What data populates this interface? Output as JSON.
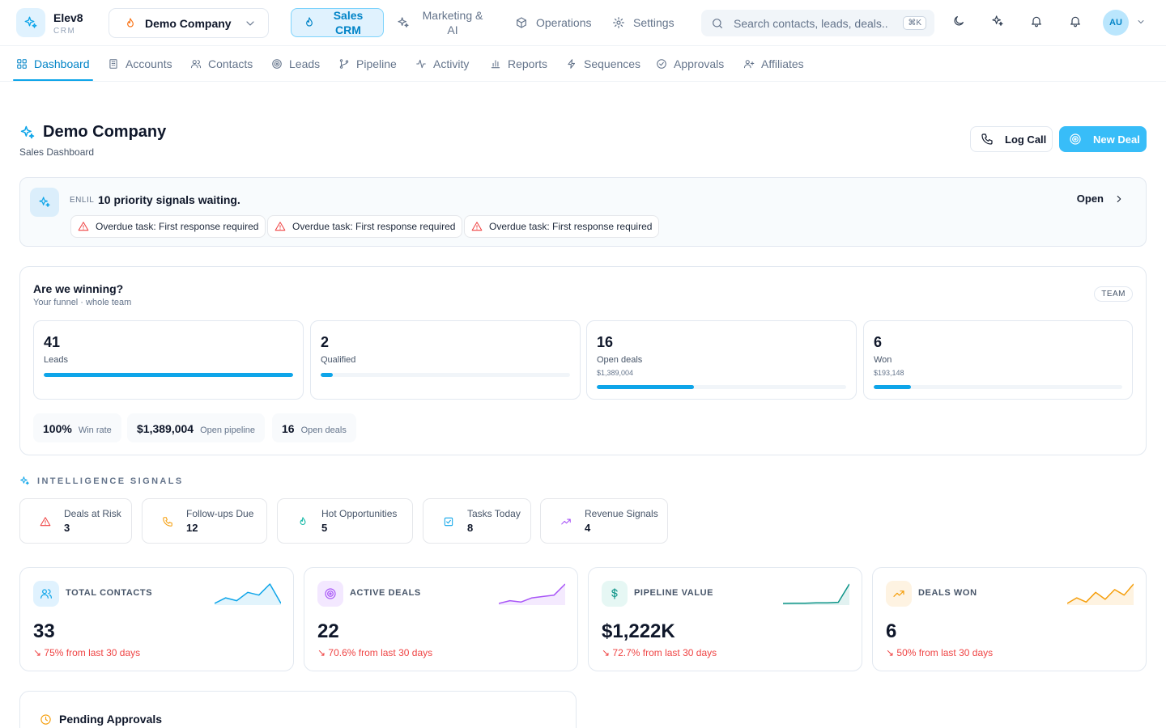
{
  "brand": {
    "name": "Elev8",
    "sub": "CRM"
  },
  "company_select": {
    "value": "Demo Company"
  },
  "modules": [
    {
      "label": "Sales CRM"
    },
    {
      "label": "Marketing & AI"
    },
    {
      "label": "Operations"
    },
    {
      "label": "Settings"
    }
  ],
  "search": {
    "placeholder": "Search contacts, leads, deals...",
    "shortcut": "⌘K"
  },
  "user": {
    "initials": "AU"
  },
  "nav": [
    {
      "label": "Dashboard"
    },
    {
      "label": "Accounts"
    },
    {
      "label": "Contacts"
    },
    {
      "label": "Leads"
    },
    {
      "label": "Pipeline"
    },
    {
      "label": "Activity"
    },
    {
      "label": "Reports"
    },
    {
      "label": "Sequences"
    },
    {
      "label": "Approvals"
    },
    {
      "label": "Affiliates"
    }
  ],
  "header": {
    "title": "Demo Company",
    "subtitle": "Sales Dashboard",
    "log_call": "Log Call",
    "new_deal": "New Deal"
  },
  "banner": {
    "tag": "ENLIL",
    "title": "10 priority signals waiting.",
    "open": "Open",
    "chips": [
      "Overdue task: First response required",
      "Overdue task: First response required",
      "Overdue task: First response required"
    ]
  },
  "funnel": {
    "title": "Are we winning?",
    "subtitle": "Your funnel · whole team",
    "badge": "TEAM",
    "stages": [
      {
        "value": "41",
        "label": "Leads",
        "amount": "",
        "progress": 1.0
      },
      {
        "value": "2",
        "label": "Qualified",
        "amount": "",
        "progress": 0.05
      },
      {
        "value": "16",
        "label": "Open deals",
        "amount": "$1,389,004",
        "progress": 0.39
      },
      {
        "value": "6",
        "label": "Won",
        "amount": "$193,148",
        "progress": 0.15
      }
    ],
    "kpis": [
      {
        "value": "100%",
        "label": "Win rate"
      },
      {
        "value": "$1,389,004",
        "label": "Open pipeline"
      },
      {
        "value": "16",
        "label": "Open deals"
      }
    ]
  },
  "signals": {
    "title": "INTELLIGENCE SIGNALS",
    "items": [
      {
        "label": "Deals at Risk",
        "value": "3",
        "icon": "alert-icon",
        "color": "#ef4444"
      },
      {
        "label": "Follow-ups Due",
        "value": "12",
        "icon": "phone-icon",
        "color": "#f59e0b"
      },
      {
        "label": "Hot Opportunities",
        "value": "5",
        "icon": "flame-icon",
        "color": "#14b8a6"
      },
      {
        "label": "Tasks Today",
        "value": "8",
        "icon": "check-square-icon",
        "color": "#0ea5e9"
      },
      {
        "label": "Revenue Signals",
        "value": "4",
        "icon": "trend-up-icon",
        "color": "#a855f7"
      }
    ]
  },
  "stats": [
    {
      "label": "TOTAL CONTACTS",
      "value": "33",
      "change": "75% from last 30 days",
      "color": "#0ea5e9",
      "bg": "#e0f2fe",
      "spark": [
        2,
        4,
        3,
        6,
        5,
        9,
        2
      ]
    },
    {
      "label": "ACTIVE DEALS",
      "value": "22",
      "change": "70.6% from last 30 days",
      "color": "#a855f7",
      "bg": "#f3e8ff",
      "spark": [
        2,
        3,
        2.5,
        4,
        4.5,
        5,
        9
      ]
    },
    {
      "label": "PIPELINE VALUE",
      "value": "$1,222K",
      "change": "72.7% from last 30 days",
      "color": "#0d9488",
      "bg": "#e6f7f4",
      "spark": [
        1,
        1.1,
        1.1,
        1.2,
        1.2,
        1.4,
        8
      ]
    },
    {
      "label": "DEALS WON",
      "value": "6",
      "change": "50% from last 30 days",
      "color": "#f59e0b",
      "bg": "#fef3e2",
      "spark": [
        2,
        4,
        2.5,
        6,
        3.5,
        7,
        5,
        9
      ]
    }
  ],
  "pending": {
    "title": "Pending Approvals"
  }
}
